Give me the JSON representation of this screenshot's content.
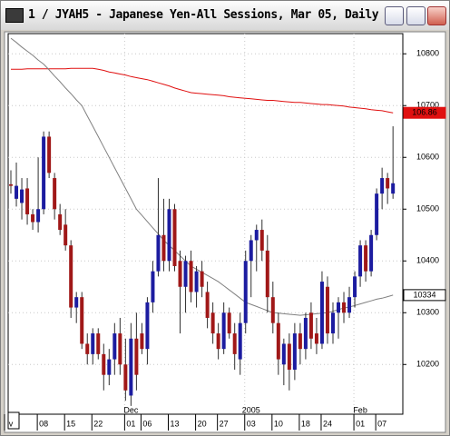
{
  "window": {
    "title": "1 / JYAH5 - Japanese Yen-All Sessions, Mar 05, Daily"
  },
  "chart_data": {
    "type": "candlestick",
    "categories": [
      "v",
      null,
      null,
      null,
      null,
      null,
      "08",
      null,
      null,
      null,
      null,
      "15",
      null,
      null,
      null,
      null,
      "22",
      null,
      null,
      null,
      null,
      null,
      "01",
      null,
      null,
      "06",
      null,
      null,
      null,
      null,
      "13",
      null,
      null,
      null,
      null,
      "20",
      null,
      null,
      null,
      "27",
      null,
      null,
      null,
      null,
      "03",
      null,
      null,
      null,
      null,
      "10",
      null,
      null,
      null,
      null,
      "18",
      null,
      null,
      null,
      "24",
      null,
      null,
      null,
      null,
      null,
      "01",
      null,
      null,
      null,
      "07",
      null,
      null
    ],
    "month_labels": [
      {
        "value": 22,
        "label": "Dec"
      },
      {
        "value": 44,
        "label": "2005"
      },
      {
        "value": 64,
        "label": "Feb"
      }
    ],
    "open": [
      10548,
      10520,
      10512,
      10540,
      10490,
      10475,
      10500,
      10640,
      10560,
      10490,
      10470,
      10430,
      10310,
      10330,
      10240,
      10220,
      10260,
      10220,
      10180,
      10210,
      10260,
      10200,
      10140,
      10250,
      10260,
      10230,
      10320,
      10380,
      10450,
      10400,
      10500,
      10400,
      10350,
      10400,
      10340,
      10380,
      10340,
      10300,
      10260,
      10230,
      10300,
      10260,
      10210,
      10280,
      10400,
      10440,
      10460,
      10420,
      10330,
      10280,
      10200,
      10240,
      10190,
      10260,
      10230,
      10300,
      10260,
      10240,
      10350,
      10260,
      10300,
      10320,
      10300,
      10330,
      10370,
      10430,
      10380,
      10450,
      10530,
      10560,
      10530
    ],
    "high": [
      10575,
      10590,
      10560,
      10560,
      10500,
      10600,
      10650,
      10650,
      10570,
      10510,
      10500,
      10440,
      10340,
      10340,
      10260,
      10270,
      10270,
      10240,
      10230,
      10280,
      10290,
      10250,
      10280,
      10300,
      10280,
      10330,
      10400,
      10560,
      10520,
      10520,
      10510,
      10420,
      10410,
      10420,
      10390,
      10400,
      10360,
      10320,
      10280,
      10320,
      10310,
      10280,
      10300,
      10420,
      10450,
      10470,
      10480,
      10450,
      10360,
      10300,
      10250,
      10260,
      10280,
      10280,
      10300,
      10320,
      10290,
      10380,
      10370,
      10320,
      10330,
      10340,
      10350,
      10380,
      10440,
      10440,
      10460,
      10540,
      10580,
      10570,
      10660
    ],
    "low": [
      10530,
      10505,
      10480,
      10470,
      10460,
      10455,
      10490,
      10560,
      10480,
      10450,
      10420,
      10290,
      10280,
      10230,
      10200,
      10200,
      10210,
      10150,
      10160,
      10180,
      10180,
      10130,
      10120,
      10150,
      10220,
      10200,
      10300,
      10370,
      10380,
      10380,
      10380,
      10260,
      10300,
      10320,
      10310,
      10330,
      10270,
      10240,
      10210,
      10220,
      10250,
      10190,
      10180,
      10260,
      10330,
      10380,
      10400,
      10300,
      10260,
      10180,
      10160,
      10150,
      10170,
      10200,
      10210,
      10230,
      10220,
      10230,
      10240,
      10240,
      10250,
      10280,
      10290,
      10310,
      10350,
      10360,
      10370,
      10440,
      10500,
      10510,
      10520
    ],
    "close": [
      10545,
      10545,
      10538,
      10490,
      10475,
      10500,
      10640,
      10570,
      10500,
      10460,
      10430,
      10310,
      10330,
      10240,
      10220,
      10260,
      10220,
      10180,
      10210,
      10260,
      10200,
      10150,
      10250,
      10180,
      10230,
      10320,
      10380,
      10450,
      10400,
      10500,
      10390,
      10350,
      10400,
      10340,
      10380,
      10350,
      10290,
      10260,
      10230,
      10300,
      10260,
      10220,
      10280,
      10400,
      10440,
      10460,
      10420,
      10330,
      10280,
      10210,
      10240,
      10190,
      10260,
      10230,
      10290,
      10250,
      10240,
      10360,
      10260,
      10300,
      10320,
      10300,
      10330,
      10370,
      10430,
      10380,
      10450,
      10530,
      10560,
      10540,
      10550
    ],
    "up_color": "#1c1ca0",
    "down_color": "#a01818",
    "series": [
      {
        "color": "#e01010",
        "values": [
          10770,
          10770,
          10770,
          10771,
          10771,
          10771,
          10771,
          10771,
          10771,
          10771,
          10771,
          10772,
          10772,
          10772,
          10772,
          10772,
          10770,
          10768,
          10765,
          10763,
          10761,
          10759,
          10756,
          10754,
          10752,
          10750,
          10747,
          10744,
          10741,
          10738,
          10734,
          10731,
          10728,
          10725,
          10724,
          10723,
          10722,
          10721,
          10720,
          10719,
          10717,
          10716,
          10715,
          10714,
          10713,
          10712,
          10711,
          10710,
          10710,
          10709,
          10708,
          10707,
          10706,
          10706,
          10705,
          10704,
          10703,
          10702,
          10702,
          10701,
          10700,
          10699,
          10697,
          10696,
          10695,
          10694,
          10692,
          10691,
          10690,
          10688,
          10686
        ],
        "value_labels": [
          null,
          null,
          null,
          null,
          null,
          null,
          null,
          null,
          null,
          null,
          null,
          null,
          null,
          null,
          null,
          null,
          null,
          null,
          null,
          null,
          null,
          null,
          null,
          null,
          null,
          null,
          null,
          null,
          null,
          null,
          null,
          null,
          null,
          null,
          null,
          null,
          null,
          null,
          null,
          null,
          null,
          null,
          null,
          null,
          null,
          null,
          null,
          null,
          null,
          null,
          null,
          null,
          null,
          null,
          null,
          null,
          null,
          null,
          null,
          null,
          null,
          null,
          null,
          null,
          null,
          null,
          null,
          null,
          null,
          null,
          "106.86"
        ]
      },
      {
        "color": "#808080",
        "values": [
          10830,
          10822,
          10813,
          10805,
          10797,
          10788,
          10780,
          10769,
          10757,
          10746,
          10734,
          10723,
          10711,
          10700,
          10680,
          10660,
          10640,
          10620,
          10600,
          10580,
          10560,
          10540,
          10520,
          10500,
          10488,
          10476,
          10464,
          10452,
          10440,
          10430,
          10420,
          10410,
          10400,
          10390,
          10384,
          10378,
          10372,
          10366,
          10360,
          10352,
          10344,
          10336,
          10328,
          10320,
          10316,
          10312,
          10308,
          10304,
          10300,
          10299,
          10298,
          10297,
          10296,
          10295,
          10296,
          10297,
          10298,
          10299,
          10300,
          10303,
          10306,
          10309,
          10311,
          10314,
          10317,
          10320,
          10323,
          10326,
          10328,
          10331,
          10334
        ]
      }
    ],
    "xlim": [
      -0.5,
      71.8
    ],
    "ylim": [
      10104,
      10839
    ],
    "yticks": [
      10200,
      10300,
      10400,
      10500,
      10600,
      10700,
      10800
    ]
  }
}
